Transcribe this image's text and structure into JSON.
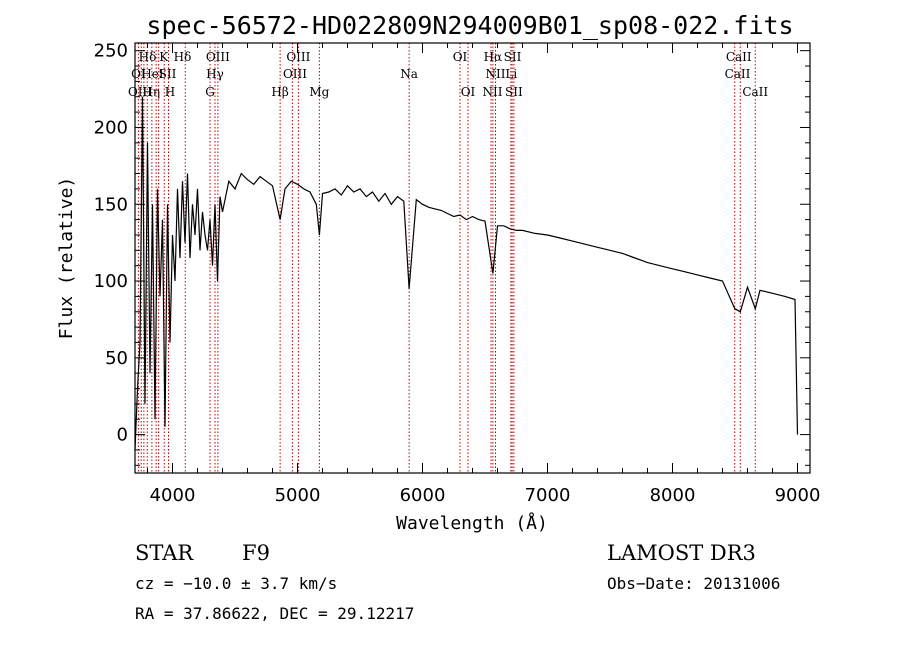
{
  "chart_data": {
    "type": "line",
    "title": "spec-56572-HD022809N294009B01_sp08-022.fits",
    "xlabel": "Wavelength (Å)",
    "ylabel": "Flux (relative)",
    "xlim": [
      3700,
      9100
    ],
    "ylim": [
      -25,
      255
    ],
    "x_ticks": [
      4000,
      5000,
      6000,
      7000,
      8000,
      9000
    ],
    "y_ticks": [
      0,
      50,
      100,
      150,
      200,
      250
    ],
    "series": [
      {
        "name": "spectrum",
        "x": [
          3700,
          3720,
          3740,
          3760,
          3780,
          3800,
          3820,
          3840,
          3860,
          3880,
          3900,
          3920,
          3940,
          3960,
          3980,
          4000,
          4020,
          4040,
          4060,
          4080,
          4100,
          4120,
          4140,
          4160,
          4180,
          4200,
          4220,
          4240,
          4260,
          4280,
          4300,
          4320,
          4340,
          4360,
          4380,
          4400,
          4450,
          4500,
          4550,
          4600,
          4650,
          4700,
          4750,
          4800,
          4861,
          4900,
          4950,
          5000,
          5050,
          5100,
          5150,
          5175,
          5200,
          5250,
          5300,
          5350,
          5400,
          5450,
          5500,
          5550,
          5600,
          5650,
          5700,
          5750,
          5800,
          5850,
          5893,
          5950,
          6000,
          6050,
          6100,
          6150,
          6200,
          6250,
          6300,
          6350,
          6400,
          6450,
          6500,
          6563,
          6600,
          6650,
          6700,
          6750,
          6800,
          6900,
          7000,
          7100,
          7200,
          7300,
          7400,
          7500,
          7600,
          7700,
          7800,
          7900,
          8000,
          8100,
          8200,
          8300,
          8400,
          8498,
          8542,
          8600,
          8662,
          8700,
          8800,
          8900,
          8980,
          9000
        ],
        "y": [
          -10,
          30,
          60,
          220,
          20,
          190,
          40,
          150,
          10,
          160,
          90,
          140,
          5,
          150,
          60,
          130,
          100,
          160,
          115,
          165,
          125,
          170,
          115,
          150,
          130,
          160,
          120,
          145,
          130,
          120,
          140,
          110,
          150,
          100,
          155,
          145,
          165,
          160,
          170,
          166,
          163,
          168,
          165,
          162,
          140,
          160,
          165,
          163,
          160,
          158,
          150,
          130,
          157,
          158,
          160,
          156,
          162,
          158,
          160,
          155,
          158,
          152,
          157,
          150,
          155,
          152,
          95,
          153,
          150,
          148,
          147,
          146,
          144,
          142,
          143,
          140,
          142,
          140,
          139,
          105,
          136,
          136,
          134,
          133,
          133,
          131,
          130,
          128,
          126,
          124,
          122,
          120,
          118,
          115,
          112,
          110,
          108,
          106,
          104,
          102,
          100,
          82,
          80,
          96,
          82,
          94,
          92,
          90,
          88,
          0
        ]
      }
    ],
    "line_markers": [
      {
        "label": "Hδ",
        "x": 4102
      }
    ]
  },
  "line_labels_row1": [
    "Hδ",
    "K",
    "Hδ",
    "OIII",
    "OIII",
    "OI",
    "Hα",
    "SII",
    "CaII"
  ],
  "line_labels_row2": [
    "OI",
    "HeI",
    "SII",
    "Hγ",
    "OIII",
    "Na",
    "NII",
    "Li",
    "CaII"
  ],
  "line_labels_row3": [
    "OIII",
    "Hη",
    "H",
    "G",
    "Hβ",
    "Mg",
    "OI",
    "NII",
    "SII",
    "CaII"
  ],
  "info": {
    "object_class": "STAR",
    "subclass": "F9",
    "survey": "LAMOST DR3",
    "cz": "cz = −10.0 ± 3.7 km/s",
    "obs_date": "Obs−Date: 20131006",
    "radec": "RA =  37.86622, DEC =  29.12217"
  },
  "colors": {
    "marker_line": "#c00000",
    "spectrum": "#000000"
  }
}
